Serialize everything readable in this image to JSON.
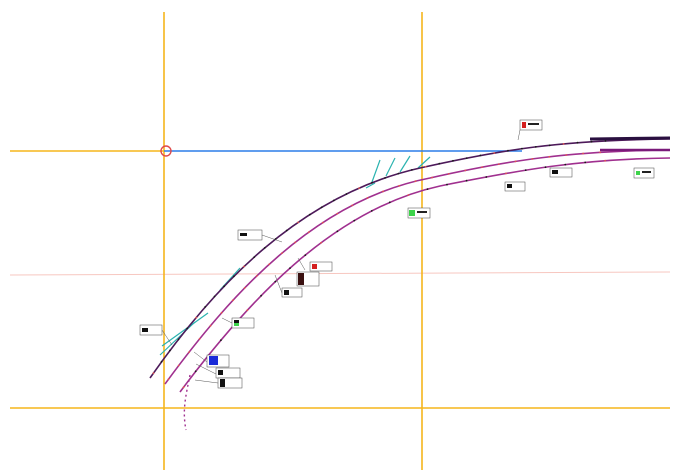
{
  "colors": {
    "background": "#ffffff",
    "guide_orange": "#f5b51c",
    "guide_blue": "#2b7de9",
    "guide_pink": "#f7b7b0",
    "track_magenta": "#a0308f",
    "track_dark": "#4d1a5a",
    "teal": "#2bb3b0",
    "marker_red": "#e0524f",
    "label_blue": "#1a2bd8",
    "label_green": "#3cd34a",
    "label_black": "#111111",
    "label_red": "#d42020"
  },
  "icons": {
    "snap_point": "red-circle-snap-marker-icon",
    "label_swatch": "colored-square-swatch-icon"
  }
}
